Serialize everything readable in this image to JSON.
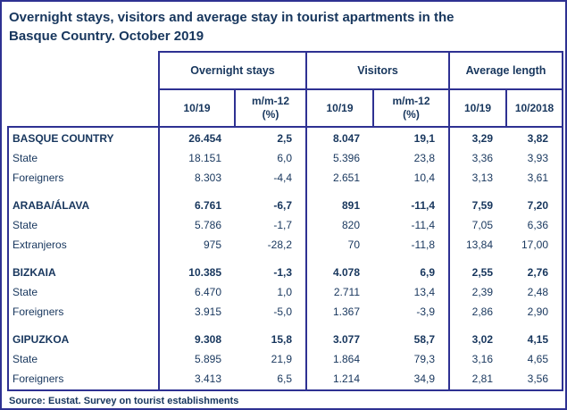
{
  "page": {
    "title_line1": "Overnight stays, visitors and average stay in tourist apartments in the",
    "title_line2": "Basque Country. October 2019",
    "source": "Source: Eustat. Survey on tourist establishments"
  },
  "colors": {
    "line": "#2e3192",
    "text": "#17365d",
    "title": "#17365d",
    "background": "#ffffff"
  },
  "chart_data": {
    "type": "table",
    "title": "Overnight stays, visitors and average stay in tourist apartments in the Basque Country. October 2019",
    "source": "Source: Eustat. Survey on tourist establishments",
    "column_groups": [
      {
        "label": "Overnight stays",
        "columns": [
          "10/19",
          "m/m-12 (%)"
        ]
      },
      {
        "label": "Visitors",
        "columns": [
          "10/19",
          "m/m-12 (%)"
        ]
      },
      {
        "label": "Average length",
        "columns": [
          "10/19",
          "10/2018"
        ]
      }
    ],
    "rows": [
      {
        "label": "BASQUE COUNTRY",
        "emphasis": true,
        "values": [
          "26.454",
          "2,5",
          "8.047",
          "19,1",
          "3,29",
          "3,82"
        ]
      },
      {
        "label": "State",
        "emphasis": false,
        "values": [
          "18.151",
          "6,0",
          "5.396",
          "23,8",
          "3,36",
          "3,93"
        ]
      },
      {
        "label": "Foreigners",
        "emphasis": false,
        "values": [
          "8.303",
          "-4,4",
          "2.651",
          "10,4",
          "3,13",
          "3,61"
        ]
      },
      {
        "label": "ARABA/ÁLAVA",
        "emphasis": true,
        "values": [
          "6.761",
          "-6,7",
          "891",
          "-11,4",
          "7,59",
          "7,20"
        ]
      },
      {
        "label": "State",
        "emphasis": false,
        "values": [
          "5.786",
          "-1,7",
          "820",
          "-11,4",
          "7,05",
          "6,36"
        ]
      },
      {
        "label": "Extranjeros",
        "emphasis": false,
        "values": [
          "975",
          "-28,2",
          "70",
          "-11,8",
          "13,84",
          "17,00"
        ]
      },
      {
        "label": "BIZKAIA",
        "emphasis": true,
        "values": [
          "10.385",
          "-1,3",
          "4.078",
          "6,9",
          "2,55",
          "2,76"
        ]
      },
      {
        "label": "State",
        "emphasis": false,
        "values": [
          "6.470",
          "1,0",
          "2.711",
          "13,4",
          "2,39",
          "2,48"
        ]
      },
      {
        "label": "Foreigners",
        "emphasis": false,
        "values": [
          "3.915",
          "-5,0",
          "1.367",
          "-3,9",
          "2,86",
          "2,90"
        ]
      },
      {
        "label": "GIPUZKOA",
        "emphasis": true,
        "values": [
          "9.308",
          "15,8",
          "3.077",
          "58,7",
          "3,02",
          "4,15"
        ]
      },
      {
        "label": "State",
        "emphasis": false,
        "values": [
          "5.895",
          "21,9",
          "1.864",
          "79,3",
          "3,16",
          "4,65"
        ]
      },
      {
        "label": "Foreigners",
        "emphasis": false,
        "values": [
          "3.413",
          "6,5",
          "1.214",
          "34,9",
          "2,81",
          "3,56"
        ]
      }
    ]
  }
}
